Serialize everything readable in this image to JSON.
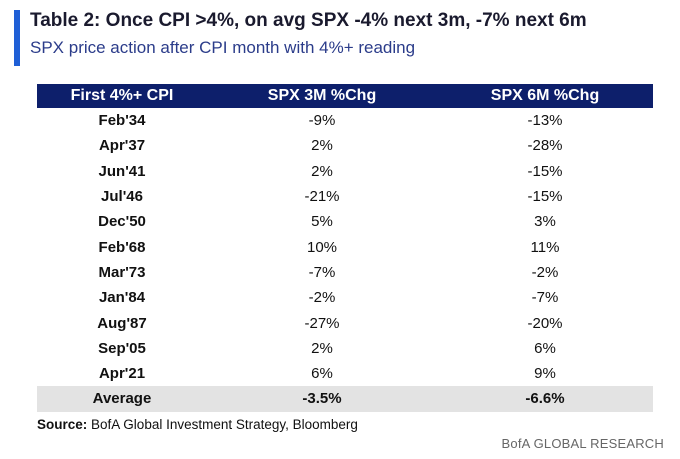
{
  "header": {
    "title": "Table 2: Once CPI >4%, on avg SPX -4% next 3m, -7% next 6m",
    "subtitle": "SPX price action after CPI month with 4%+ reading"
  },
  "table": {
    "columns": [
      "First 4%+ CPI",
      "SPX 3M %Chg",
      "SPX 6M %Chg"
    ],
    "rows": [
      [
        "Feb'34",
        "-9%",
        "-13%"
      ],
      [
        "Apr'37",
        "2%",
        "-28%"
      ],
      [
        "Jun'41",
        "2%",
        "-15%"
      ],
      [
        "Jul'46",
        "-21%",
        "-15%"
      ],
      [
        "Dec'50",
        "5%",
        "3%"
      ],
      [
        "Feb'68",
        "10%",
        "11%"
      ],
      [
        "Mar'73",
        "-7%",
        "-2%"
      ],
      [
        "Jan'84",
        "-2%",
        "-7%"
      ],
      [
        "Aug'87",
        "-27%",
        "-20%"
      ],
      [
        "Sep'05",
        "2%",
        "6%"
      ],
      [
        "Apr'21",
        "6%",
        "9%"
      ]
    ],
    "average": [
      "Average",
      "-3.5%",
      "-6.6%"
    ]
  },
  "source": {
    "label": "Source:",
    "text": "BofA Global Investment Strategy, Bloomberg"
  },
  "brand": "BofA GLOBAL RESEARCH",
  "colors": {
    "accent": "#1f5fd6",
    "header_bg": "#0d1f6b",
    "subtitle": "#2b3c8a",
    "total_bg": "#e3e3e3"
  }
}
